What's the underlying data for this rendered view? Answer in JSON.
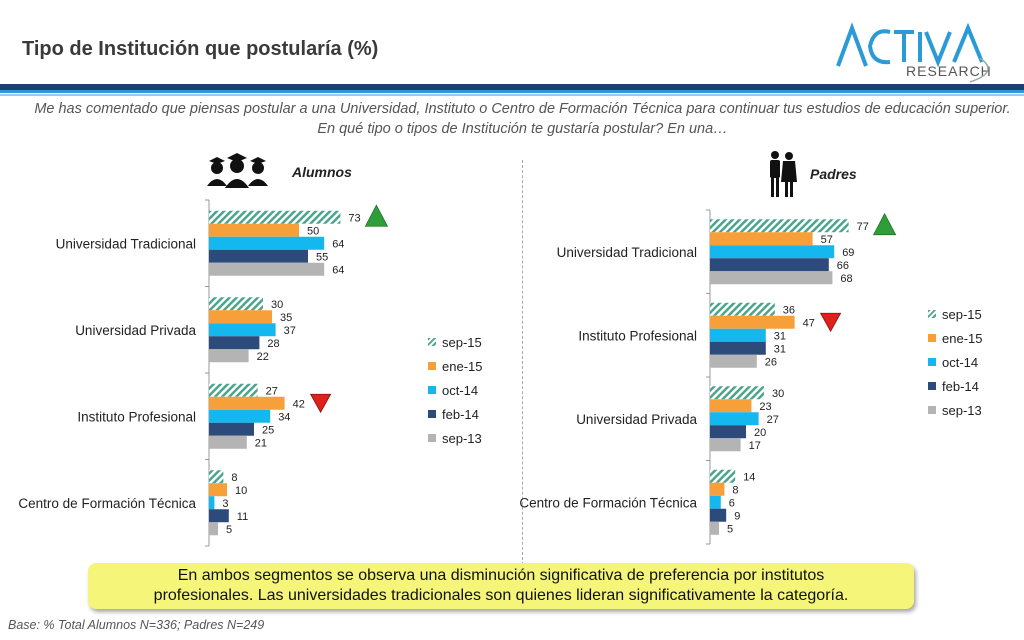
{
  "title": "Tipo de Institución que postularía (%)",
  "logo": {
    "line1": "ACTIVA",
    "line2": "RESEARCH"
  },
  "question": "Me has comentado que piensas postular a una  Universidad, Instituto o Centro de Formación Técnica para continuar tus estudios de educación superior. En qué tipo o tipos de Institución te gustaría postular? En una…",
  "colors": {
    "sep-15": "#4aa58c",
    "ene-15": "#f7a03a",
    "oct-14": "#14b8ee",
    "feb-14": "#2c4b7a",
    "sep-13": "#b4b4b4",
    "up": "#2e9e3a",
    "down": "#e0201b",
    "band_dark": "#1b3f6e",
    "band_light": "#2b9ad6"
  },
  "chart_data": [
    {
      "type": "bar",
      "title": "Alumnos",
      "orientation": "horizontal",
      "categories": [
        "Universidad Tradicional",
        "Universidad Privada",
        "Instituto Profesional",
        "Centro de Formación Técnica"
      ],
      "series": [
        {
          "name": "sep-15",
          "values": [
            73,
            30,
            27,
            8
          ]
        },
        {
          "name": "ene-15",
          "values": [
            50,
            35,
            42,
            10
          ]
        },
        {
          "name": "oct-14",
          "values": [
            64,
            37,
            34,
            3
          ]
        },
        {
          "name": "feb-14",
          "values": [
            55,
            28,
            25,
            11
          ]
        },
        {
          "name": "sep-13",
          "values": [
            64,
            22,
            21,
            5
          ]
        }
      ],
      "xlim": [
        0,
        100
      ],
      "legend": "right",
      "annotations": [
        {
          "category": "Universidad Tradicional",
          "series": "sep-15",
          "marker": "up"
        },
        {
          "category": "Instituto Profesional",
          "series": "ene-15",
          "marker": "down"
        }
      ]
    },
    {
      "type": "bar",
      "title": "Padres",
      "orientation": "horizontal",
      "categories": [
        "Universidad Tradicional",
        "Instituto Profesional",
        "Universidad Privada",
        "Centro de Formación Técnica"
      ],
      "series": [
        {
          "name": "sep-15",
          "values": [
            77,
            36,
            30,
            14
          ]
        },
        {
          "name": "ene-15",
          "values": [
            57,
            47,
            23,
            8
          ]
        },
        {
          "name": "oct-14",
          "values": [
            69,
            31,
            27,
            6
          ]
        },
        {
          "name": "feb-14",
          "values": [
            66,
            31,
            20,
            9
          ]
        },
        {
          "name": "sep-13",
          "values": [
            68,
            26,
            17,
            5
          ]
        }
      ],
      "xlim": [
        0,
        100
      ],
      "legend": "right",
      "annotations": [
        {
          "category": "Universidad Tradicional",
          "series": "sep-15",
          "marker": "up"
        },
        {
          "category": "Instituto Profesional",
          "series": "ene-15",
          "marker": "down"
        }
      ]
    }
  ],
  "callout": {
    "line1": "En ambos segmentos se observa una disminución significativa de preferencia por institutos",
    "line2": "profesionales. Las universidades tradicionales son quienes lideran significativamente  la categoría."
  },
  "footer": "Base: % Total Alumnos  N=336;  Padres N=249"
}
